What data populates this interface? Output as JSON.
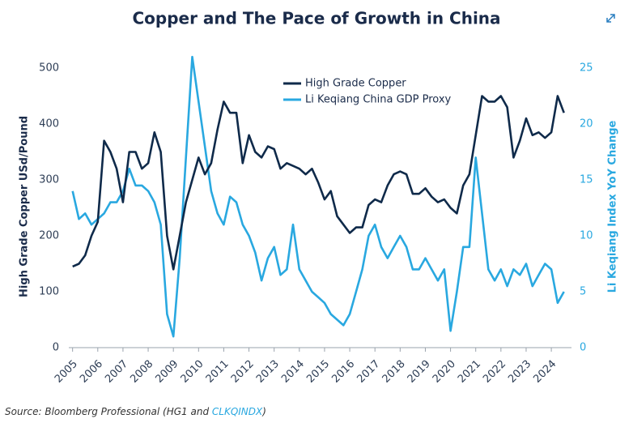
{
  "chart_data": {
    "type": "line",
    "title": "Copper and The Pace of Growth in China",
    "y_label": "High Grade Copper USd/Pound",
    "y2_label": "Li Keqiang Index YoY Change",
    "source": {
      "text": "Source: Bloomberg Professional (HG1 and ",
      "link": "CLKQINDX",
      "end": ")"
    },
    "legend": "upper center",
    "grid": false,
    "xlim": [
      2004.85,
      2024.8
    ],
    "xticks": [
      2005,
      2006,
      2007,
      2008,
      2009,
      2010,
      2011,
      2012,
      2013,
      2014,
      2015,
      2016,
      2017,
      2018,
      2019,
      2020,
      2021,
      2022,
      2023,
      2024
    ],
    "ylim": [
      0,
      542
    ],
    "yticks": [
      0,
      100,
      200,
      300,
      400,
      500
    ],
    "y2lim": [
      0,
      27.1
    ],
    "y2ticks": [
      0,
      5,
      10,
      15,
      20,
      25
    ],
    "x": [
      2005,
      2005.25,
      2005.5,
      2005.75,
      2006,
      2006.25,
      2006.5,
      2006.75,
      2007,
      2007.25,
      2007.5,
      2007.75,
      2008,
      2008.25,
      2008.5,
      2008.75,
      2009,
      2009.25,
      2009.5,
      2009.75,
      2010,
      2010.25,
      2010.5,
      2010.75,
      2011,
      2011.25,
      2011.5,
      2011.75,
      2012,
      2012.25,
      2012.5,
      2012.75,
      2013,
      2013.25,
      2013.5,
      2013.75,
      2014,
      2014.25,
      2014.5,
      2014.75,
      2015,
      2015.25,
      2015.5,
      2015.75,
      2016,
      2016.25,
      2016.5,
      2016.75,
      2017,
      2017.25,
      2017.5,
      2017.75,
      2018,
      2018.25,
      2018.5,
      2018.75,
      2019,
      2019.25,
      2019.5,
      2019.75,
      2020,
      2020.25,
      2020.5,
      2020.75,
      2021,
      2021.25,
      2021.5,
      2021.75,
      2022,
      2022.25,
      2022.5,
      2022.75,
      2023,
      2023.25,
      2023.5,
      2023.75,
      2024,
      2024.25,
      2024.5
    ],
    "series": [
      {
        "name": "High Grade Copper",
        "color": "#0f2a4a",
        "axis": "y",
        "values": [
          145,
          150,
          165,
          200,
          225,
          370,
          350,
          320,
          260,
          350,
          350,
          320,
          330,
          385,
          350,
          200,
          140,
          200,
          260,
          300,
          340,
          310,
          330,
          390,
          440,
          420,
          420,
          330,
          380,
          350,
          340,
          360,
          355,
          320,
          330,
          325,
          320,
          310,
          320,
          295,
          265,
          280,
          235,
          220,
          205,
          215,
          215,
          255,
          265,
          260,
          290,
          310,
          315,
          310,
          275,
          275,
          285,
          270,
          260,
          265,
          250,
          240,
          290,
          310,
          380,
          450,
          440,
          440,
          450,
          430,
          340,
          370,
          410,
          380,
          385,
          375,
          385,
          450,
          420
        ]
      },
      {
        "name": "Li Keqiang China GDP Proxy",
        "color": "#29a8e0",
        "axis": "y2",
        "values": [
          14,
          11.5,
          12,
          11,
          11.5,
          12,
          13,
          13,
          14,
          16,
          14.5,
          14.5,
          14,
          13,
          11,
          3,
          1,
          8,
          17,
          26,
          22,
          18,
          14,
          12,
          11,
          13.5,
          13,
          11,
          10,
          8.5,
          6,
          8,
          9,
          6.5,
          7,
          11,
          7,
          6,
          5,
          4.5,
          4,
          3,
          2.5,
          2,
          3,
          5,
          7,
          10,
          11,
          9,
          8,
          9,
          10,
          9,
          7,
          7,
          8,
          7,
          6,
          7,
          1.5,
          5,
          9,
          9,
          17,
          12,
          7,
          6,
          7,
          5.5,
          7,
          6.5,
          7.5,
          5.5,
          6.5,
          7.5,
          7,
          4,
          5
        ]
      }
    ]
  }
}
